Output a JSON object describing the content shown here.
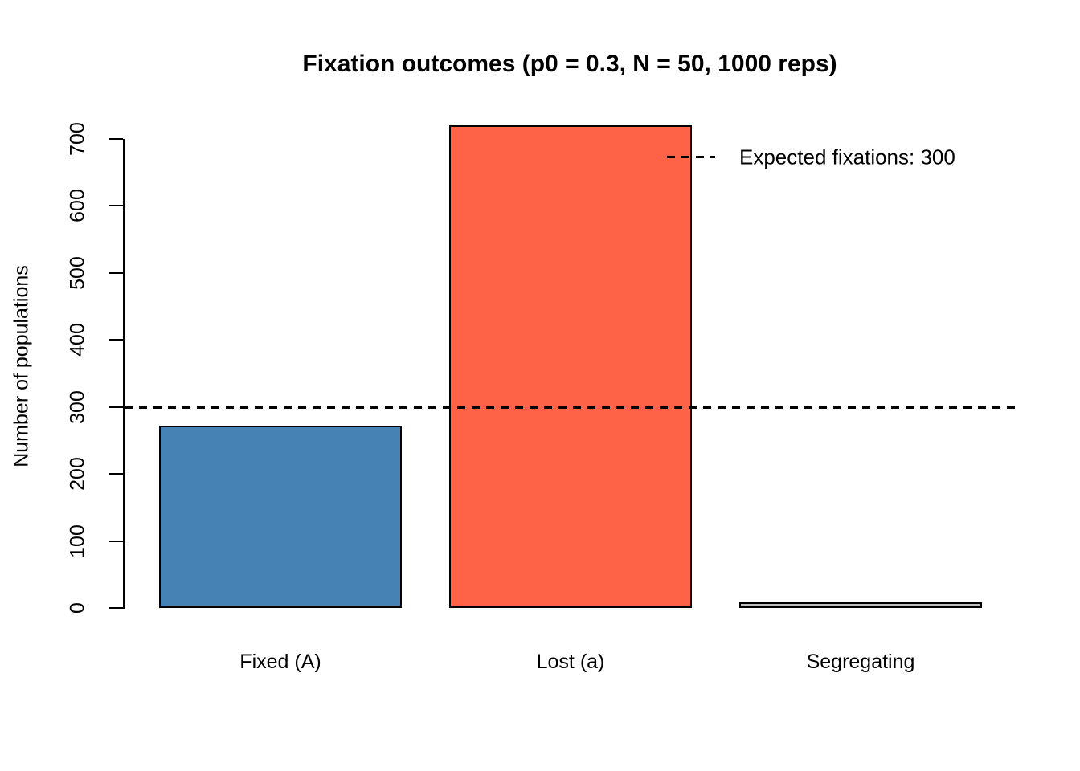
{
  "title": "Fixation outcomes (p0 = 0.3, N = 50, 1000 reps)",
  "chart_data": {
    "type": "bar",
    "title": "Fixation outcomes (p0 = 0.3, N = 50, 1000 reps)",
    "categories": [
      "Fixed (A)",
      "Lost (a)",
      "Segregating"
    ],
    "values": [
      272,
      720,
      8
    ],
    "total_reps": 1000,
    "bar_colors": [
      "#4682B4",
      "#FF6347",
      "#BEBEBE"
    ],
    "bar_border_color": "#000000",
    "xlabel": "",
    "ylabel": "Number of populations",
    "ylim": [
      0,
      720
    ],
    "yticks": [
      0,
      100,
      200,
      300,
      400,
      500,
      600,
      700
    ],
    "grid": false,
    "reference_line": {
      "value": 300,
      "style": "dashed",
      "color": "#000000"
    },
    "legend": {
      "label": "Expected fixations: 300",
      "line_style": "dashed",
      "position": "top-right",
      "frame": false
    }
  }
}
